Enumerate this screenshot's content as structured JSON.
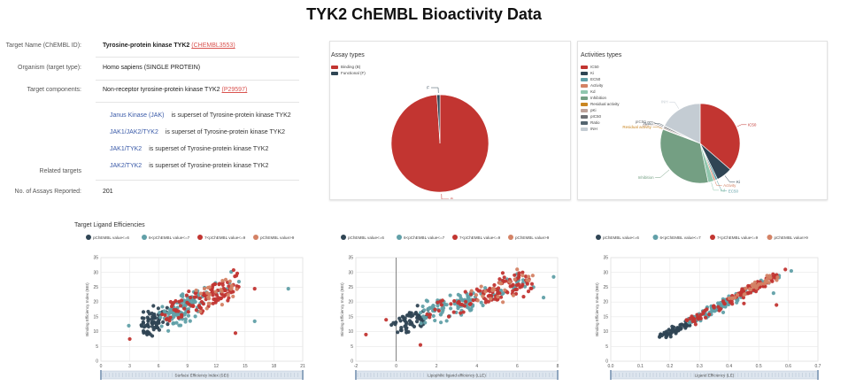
{
  "page_title": "TYK2 ChEMBL Bioactivity Data",
  "info": {
    "target_name_label": "Target Name (ChEMBL ID):",
    "target_name": "Tyrosine-protein kinase TYK2",
    "target_chembl_id": "(CHEMBL3553)",
    "organism_label": "Organism (target type):",
    "organism": "Homo sapiens (SINGLE PROTEIN)",
    "components_label": "Target components:",
    "components": "Non-receptor tyrosine-protein kinase TYK2",
    "components_id": "(P29597)",
    "related_label": "Related targets",
    "related": [
      {
        "name": "Janus Kinase (JAK)",
        "rel": "is superset of Tyrosine-protein kinase TYK2"
      },
      {
        "name": "JAK1/JAK2/TYK2",
        "rel": "is superset of Tyrosine-protein kinase TYK2"
      },
      {
        "name": "JAK1/TYK2",
        "rel": "is superset of Tyrosine-protein kinase TYK2"
      },
      {
        "name": "JAK2/TYK2",
        "rel": "is superset of Tyrosine-protein kinase TYK2"
      }
    ],
    "assays_label": "No. of Assays Reported:",
    "assays": "201"
  },
  "assay_panel": {
    "title": "Assay types"
  },
  "activity_panel": {
    "title": "Activities types"
  },
  "scatter_section_title": "Target Ligand Efficiencies",
  "scatter_legend": [
    "pChEMBL value<=6",
    "6<pChEMBL value<=7",
    "7<pChEMBL value<=9",
    "pChEMBL value>9"
  ],
  "scatter_colors": [
    "#2f4554",
    "#61a0a8",
    "#c23531",
    "#d48265"
  ],
  "chart_data": [
    {
      "type": "pie",
      "title": "Assay types",
      "labels": [
        "Binding (B)",
        "Functional (F)"
      ],
      "short_labels": [
        "B",
        "F"
      ],
      "values": [
        199,
        2
      ],
      "colors": [
        "#c23531",
        "#2f4554"
      ],
      "legend": "top-left"
    },
    {
      "type": "pie",
      "title": "Activities types",
      "labels": [
        "IC50",
        "Ki",
        "EC50",
        "Activity",
        "Kd",
        "Inhibition",
        "Residual activity",
        "pKi",
        "pIC50",
        "Ratio",
        "INH"
      ],
      "values": [
        620,
        110,
        15,
        12,
        40,
        580,
        4,
        8,
        10,
        6,
        300
      ],
      "colors": [
        "#c23531",
        "#2f4554",
        "#61a0a8",
        "#d48265",
        "#91c7ae",
        "#749f83",
        "#ca8622",
        "#bda29a",
        "#6e7074",
        "#546570",
        "#c4ccd3"
      ],
      "legend": "top-left"
    },
    {
      "type": "scatter",
      "xlabel": "Surface Efficiency Index (SEI)",
      "ylabel": "Binding Efficiency Index (BEI)",
      "xlim": [
        0,
        21
      ],
      "ylim": [
        0,
        35
      ],
      "xticks": [
        0,
        3,
        6,
        9,
        12,
        15,
        18,
        21
      ],
      "yticks": [
        0,
        5,
        10,
        15,
        20,
        25,
        30,
        35
      ],
      "x_tick_decimals": 0,
      "trend": {
        "x_min": 4.5,
        "x_max": 14,
        "y_at_min": 12,
        "y_at_max": 26,
        "spread": 4.5
      },
      "outliers": [
        [
          3,
          7.5
        ],
        [
          19.5,
          24.5
        ],
        [
          16,
          24.5
        ],
        [
          16,
          13.5
        ],
        [
          14,
          9.5
        ],
        [
          2.9,
          12
        ]
      ],
      "legend": "top"
    },
    {
      "type": "scatter",
      "xlabel": "Lipophilic ligand efficiency (LLE)",
      "ylabel": "Binding Efficiency Index (BEI)",
      "xlim": [
        -2,
        8
      ],
      "ylim": [
        0,
        35
      ],
      "xticks": [
        -2,
        0,
        2,
        4,
        6,
        8
      ],
      "yticks": [
        0,
        5,
        10,
        15,
        20,
        25,
        30,
        35
      ],
      "x_tick_decimals": 0,
      "zero_line_x": 0,
      "trend": {
        "x_min": 0,
        "x_max": 6.5,
        "y_at_min": 13,
        "y_at_max": 27,
        "spread": 3.5
      },
      "outliers": [
        [
          -1.5,
          9
        ],
        [
          7.3,
          21.5
        ],
        [
          1.2,
          5.5
        ],
        [
          7.8,
          28.5
        ],
        [
          -0.5,
          14
        ]
      ],
      "legend": "top"
    },
    {
      "type": "scatter",
      "xlabel": "Ligand Efficiency (LE)",
      "ylabel": "Binding Efficiency Index (BEI)",
      "xlim": [
        0,
        0.7
      ],
      "ylim": [
        0,
        35
      ],
      "xticks": [
        0,
        0.1,
        0.2,
        0.3,
        0.4,
        0.5,
        0.6,
        0.7
      ],
      "yticks": [
        0,
        5,
        10,
        15,
        20,
        25,
        30,
        35
      ],
      "x_tick_decimals": 1,
      "trend": {
        "x_min": 0.18,
        "x_max": 0.56,
        "y_at_min": 8.5,
        "y_at_max": 29,
        "spread": 0.8
      },
      "outliers": [
        [
          0.59,
          31
        ],
        [
          0.61,
          30.5
        ],
        [
          0.56,
          19
        ],
        [
          0.55,
          23
        ],
        [
          0.45,
          19.5
        ],
        [
          0.38,
          16.5
        ]
      ],
      "legend": "top"
    }
  ]
}
